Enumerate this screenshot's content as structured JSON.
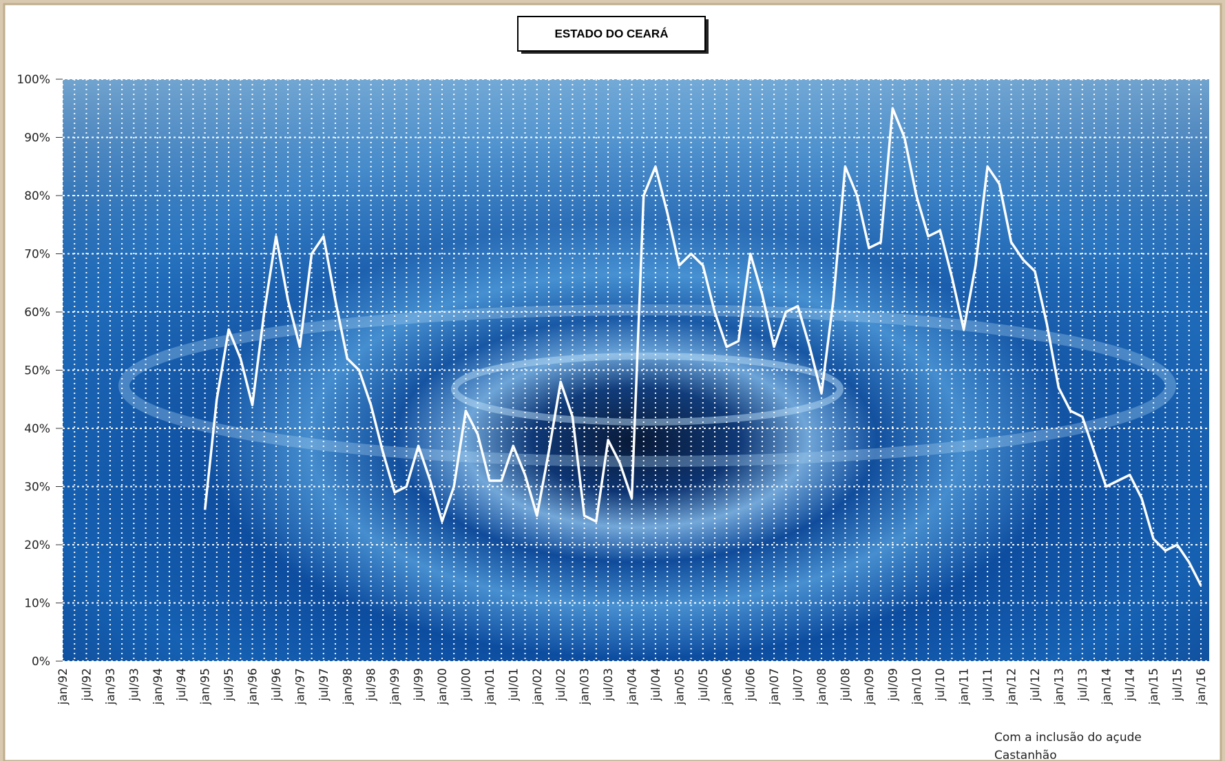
{
  "chart_data": {
    "type": "line",
    "title": "ESTADO DO CEARÁ",
    "annotation": [
      "Com a inclusão do açude",
      "Castanhão"
    ],
    "categories": [
      "jan/92",
      null,
      "jul/92",
      null,
      "jan/93",
      null,
      "jul/93",
      null,
      "jan/94",
      null,
      "jul/94",
      null,
      "jan/95",
      null,
      "jul/95",
      null,
      "jan/96",
      null,
      "jul/96",
      null,
      "jan/97",
      null,
      "jul/97",
      null,
      "jan/98",
      null,
      "jul/98",
      null,
      "jan/99",
      null,
      "jul/99",
      null,
      "jan/00",
      null,
      "jul/00",
      null,
      "jan/01",
      null,
      "jul/01",
      null,
      "jan/02",
      null,
      "jul/02",
      null,
      "jan/03",
      null,
      "jul/03",
      null,
      "jan/04",
      null,
      "jul/04",
      null,
      "jan/05",
      null,
      "jul/05",
      null,
      "jan/06",
      null,
      "jul/06",
      null,
      "jan/07",
      null,
      "jul/07",
      null,
      "jan/08",
      null,
      "jul/08",
      null,
      "jan/09",
      null,
      "jul/09",
      null,
      "jan/10",
      null,
      "jul/10",
      null,
      "jan/11",
      null,
      "jul/11",
      null,
      "jan/12",
      null,
      "jul/12",
      null,
      "jan/13",
      null,
      "jul/13",
      null,
      "jan/14",
      null,
      "jul/14",
      null,
      "jan/15",
      null,
      "jul/15",
      null,
      "jan/16"
    ],
    "values": [
      null,
      null,
      null,
      null,
      null,
      null,
      null,
      null,
      null,
      null,
      null,
      null,
      26,
      45,
      57,
      52,
      44,
      60,
      73,
      62,
      54,
      70,
      73,
      62,
      52,
      50,
      44,
      36,
      29,
      30,
      37,
      31,
      24,
      30,
      43,
      39,
      31,
      31,
      37,
      32,
      25,
      36,
      48,
      42,
      25,
      24,
      38,
      34,
      28,
      80,
      85,
      77,
      68,
      70,
      68,
      60,
      54,
      55,
      70,
      63,
      54,
      60,
      61,
      54,
      46,
      62,
      85,
      80,
      71,
      72,
      95,
      90,
      80,
      73,
      74,
      66,
      57,
      68,
      85,
      82,
      72,
      69,
      67,
      58,
      47,
      43,
      42,
      36,
      30,
      31,
      32,
      28,
      21,
      19,
      20,
      17,
      13
    ],
    "color": "#ffffff",
    "ylim": [
      0,
      100
    ],
    "yticks": [
      {
        "value": 0,
        "label": "0%"
      },
      {
        "value": 10,
        "label": "10%"
      },
      {
        "value": 20,
        "label": "20%"
      },
      {
        "value": 30,
        "label": "30%"
      },
      {
        "value": 40,
        "label": "40%"
      },
      {
        "value": 50,
        "label": "50%"
      },
      {
        "value": 60,
        "label": "60%"
      },
      {
        "value": 70,
        "label": "70%"
      },
      {
        "value": 80,
        "label": "80%"
      },
      {
        "value": 90,
        "label": "90%"
      },
      {
        "value": 100,
        "label": "100%"
      }
    ],
    "grid": true
  }
}
